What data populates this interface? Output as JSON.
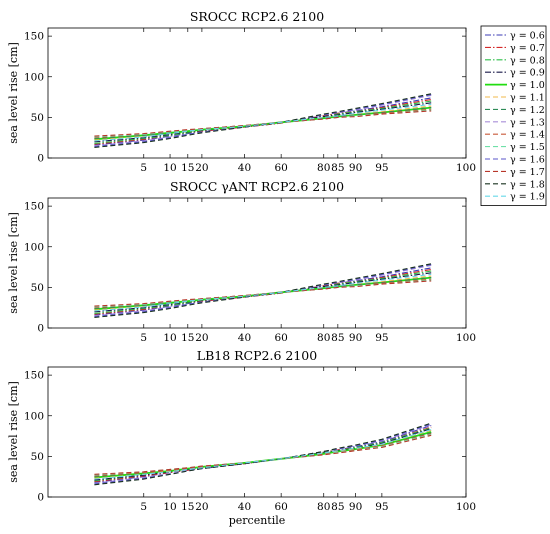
{
  "chart_data": [
    {
      "type": "line",
      "title": "SROCC RCP2.6 2100",
      "xlabel": "",
      "ylabel": "sea level rise [cm]",
      "x_ticks": [
        "5",
        "10",
        "15",
        "20",
        "40",
        "60",
        "80",
        "85",
        "90",
        "95",
        "100"
      ],
      "y_ticks": [
        "0",
        "50",
        "100",
        "150"
      ],
      "ylim": [
        0,
        160
      ],
      "x": [
        1,
        5,
        10,
        15,
        20,
        40,
        60,
        80,
        85,
        90,
        95,
        99
      ],
      "series": [
        {
          "name": "γ = 0.6",
          "values": [
            16,
            22,
            27,
            30,
            33,
            38,
            43,
            52,
            55,
            58,
            63,
            74
          ]
        },
        {
          "name": "γ = 0.7",
          "values": [
            17,
            23,
            28,
            31,
            33,
            38,
            43,
            52,
            55,
            57,
            62,
            72
          ]
        },
        {
          "name": "γ = 0.8",
          "values": [
            18,
            24,
            28,
            31,
            34,
            39,
            44,
            51,
            54,
            57,
            61,
            70
          ]
        },
        {
          "name": "γ = 0.9",
          "values": [
            20,
            25,
            29,
            32,
            34,
            39,
            44,
            51,
            53,
            56,
            60,
            68
          ]
        },
        {
          "name": "γ = 1.0",
          "values": [
            23,
            28,
            31,
            33,
            35,
            39,
            44,
            49,
            51,
            53,
            56,
            62
          ]
        },
        {
          "name": "γ = 1.1",
          "values": [
            22,
            27,
            30,
            33,
            35,
            39,
            44,
            50,
            52,
            54,
            57,
            64
          ]
        },
        {
          "name": "γ = 1.2",
          "values": [
            24,
            28,
            31,
            34,
            36,
            39,
            44,
            49,
            51,
            53,
            56,
            62
          ]
        },
        {
          "name": "γ = 1.3",
          "values": [
            15,
            21,
            26,
            29,
            32,
            38,
            44,
            53,
            56,
            59,
            65,
            77
          ]
        },
        {
          "name": "γ = 1.4",
          "values": [
            25,
            29,
            32,
            34,
            36,
            40,
            44,
            48,
            50,
            52,
            55,
            60
          ]
        },
        {
          "name": "γ = 1.5",
          "values": [
            26,
            29,
            32,
            34,
            36,
            40,
            44,
            48,
            50,
            52,
            54,
            59
          ]
        },
        {
          "name": "γ = 1.6",
          "values": [
            14,
            20,
            25,
            29,
            32,
            38,
            44,
            53,
            56,
            60,
            66,
            78
          ]
        },
        {
          "name": "γ = 1.7",
          "values": [
            27,
            30,
            33,
            35,
            36,
            40,
            44,
            48,
            50,
            51,
            54,
            58
          ]
        },
        {
          "name": "γ = 1.8",
          "values": [
            13,
            19,
            24,
            28,
            31,
            38,
            44,
            54,
            57,
            61,
            67,
            79
          ]
        },
        {
          "name": "γ = 1.9",
          "values": [
            21,
            26,
            30,
            33,
            35,
            39,
            44,
            50,
            52,
            55,
            59,
            66
          ]
        }
      ]
    },
    {
      "type": "line",
      "title": "SROCC γANT RCP2.6 2100",
      "xlabel": "",
      "ylabel": "sea level rise [cm]",
      "x_ticks": [
        "5",
        "10",
        "15",
        "20",
        "40",
        "60",
        "80",
        "85",
        "90",
        "95",
        "100"
      ],
      "y_ticks": [
        "0",
        "50",
        "100",
        "150"
      ],
      "ylim": [
        0,
        160
      ],
      "x": [
        1,
        5,
        10,
        15,
        20,
        40,
        60,
        80,
        85,
        90,
        95,
        99
      ],
      "series": [
        {
          "name": "γ = 0.6",
          "values": [
            16,
            22,
            27,
            30,
            33,
            38,
            43,
            52,
            55,
            58,
            63,
            74
          ]
        },
        {
          "name": "γ = 0.7",
          "values": [
            17,
            23,
            28,
            31,
            33,
            38,
            43,
            52,
            55,
            57,
            62,
            72
          ]
        },
        {
          "name": "γ = 0.8",
          "values": [
            18,
            24,
            28,
            31,
            34,
            39,
            44,
            51,
            54,
            57,
            61,
            70
          ]
        },
        {
          "name": "γ = 0.9",
          "values": [
            20,
            25,
            29,
            32,
            34,
            39,
            44,
            51,
            53,
            56,
            60,
            68
          ]
        },
        {
          "name": "γ = 1.0",
          "values": [
            23,
            28,
            31,
            33,
            35,
            39,
            44,
            49,
            51,
            53,
            56,
            62
          ]
        },
        {
          "name": "γ = 1.1",
          "values": [
            22,
            27,
            30,
            33,
            35,
            39,
            44,
            50,
            52,
            54,
            57,
            64
          ]
        },
        {
          "name": "γ = 1.2",
          "values": [
            24,
            28,
            31,
            34,
            36,
            39,
            44,
            49,
            51,
            53,
            56,
            62
          ]
        },
        {
          "name": "γ = 1.3",
          "values": [
            15,
            21,
            26,
            29,
            32,
            38,
            44,
            53,
            56,
            59,
            65,
            77
          ]
        },
        {
          "name": "γ = 1.4",
          "values": [
            25,
            29,
            32,
            34,
            36,
            40,
            44,
            48,
            50,
            52,
            55,
            60
          ]
        },
        {
          "name": "γ = 1.5",
          "values": [
            26,
            29,
            32,
            34,
            36,
            40,
            44,
            48,
            50,
            52,
            54,
            59
          ]
        },
        {
          "name": "γ = 1.6",
          "values": [
            14,
            20,
            25,
            29,
            32,
            38,
            44,
            53,
            56,
            60,
            66,
            78
          ]
        },
        {
          "name": "γ = 1.7",
          "values": [
            27,
            30,
            33,
            35,
            36,
            40,
            44,
            48,
            50,
            51,
            54,
            58
          ]
        },
        {
          "name": "γ = 1.8",
          "values": [
            13,
            19,
            24,
            28,
            31,
            38,
            44,
            54,
            57,
            61,
            67,
            79
          ]
        },
        {
          "name": "γ = 1.9",
          "values": [
            21,
            26,
            30,
            33,
            35,
            39,
            44,
            50,
            52,
            55,
            59,
            66
          ]
        }
      ]
    },
    {
      "type": "line",
      "title": "LB18 RCP2.6 2100",
      "xlabel": "percentile",
      "ylabel": "sea level rise [cm]",
      "x_ticks": [
        "5",
        "10",
        "15",
        "20",
        "40",
        "60",
        "80",
        "85",
        "90",
        "95",
        "100"
      ],
      "y_ticks": [
        "0",
        "50",
        "100",
        "150"
      ],
      "ylim": [
        0,
        160
      ],
      "x": [
        1,
        5,
        10,
        15,
        20,
        40,
        60,
        80,
        85,
        90,
        95,
        99
      ],
      "series": [
        {
          "name": "γ = 0.6",
          "values": [
            18,
            25,
            30,
            33,
            35,
            41,
            47,
            55,
            58,
            62,
            68,
            88
          ]
        },
        {
          "name": "γ = 0.7",
          "values": [
            19,
            26,
            30,
            33,
            36,
            41,
            47,
            55,
            58,
            61,
            67,
            86
          ]
        },
        {
          "name": "γ = 0.8",
          "values": [
            20,
            27,
            31,
            34,
            36,
            42,
            47,
            55,
            57,
            61,
            67,
            85
          ]
        },
        {
          "name": "γ = 0.9",
          "values": [
            21,
            27,
            31,
            34,
            36,
            42,
            47,
            54,
            57,
            60,
            66,
            84
          ]
        },
        {
          "name": "γ = 1.0",
          "values": [
            24,
            29,
            32,
            35,
            37,
            42,
            47,
            53,
            56,
            59,
            64,
            80
          ]
        },
        {
          "name": "γ = 1.1",
          "values": [
            23,
            28,
            32,
            35,
            37,
            42,
            47,
            54,
            56,
            59,
            65,
            82
          ]
        },
        {
          "name": "γ = 1.2",
          "values": [
            25,
            30,
            33,
            35,
            37,
            42,
            47,
            53,
            55,
            58,
            63,
            79
          ]
        },
        {
          "name": "γ = 1.3",
          "values": [
            17,
            24,
            29,
            33,
            35,
            41,
            47,
            56,
            59,
            63,
            69,
            89
          ]
        },
        {
          "name": "γ = 1.4",
          "values": [
            26,
            30,
            33,
            35,
            37,
            42,
            47,
            53,
            55,
            58,
            63,
            78
          ]
        },
        {
          "name": "γ = 1.5",
          "values": [
            27,
            31,
            34,
            36,
            38,
            42,
            47,
            52,
            55,
            57,
            62,
            77
          ]
        },
        {
          "name": "γ = 1.6",
          "values": [
            16,
            23,
            28,
            32,
            35,
            41,
            47,
            56,
            59,
            63,
            70,
            90
          ]
        },
        {
          "name": "γ = 1.7",
          "values": [
            28,
            31,
            34,
            36,
            38,
            42,
            47,
            52,
            54,
            57,
            61,
            76
          ]
        },
        {
          "name": "γ = 1.8",
          "values": [
            15,
            22,
            28,
            32,
            35,
            41,
            47,
            56,
            60,
            64,
            71,
            91
          ]
        },
        {
          "name": "γ = 1.9",
          "values": [
            22,
            28,
            31,
            34,
            36,
            42,
            47,
            54,
            57,
            60,
            65,
            83
          ]
        }
      ]
    }
  ],
  "legend": {
    "placement": "right",
    "entries": [
      {
        "label": "γ = 0.6",
        "color": "#3b3bb5",
        "dash": "dashdot"
      },
      {
        "label": "γ = 0.7",
        "color": "#d42a2a",
        "dash": "dashdot"
      },
      {
        "label": "γ = 0.8",
        "color": "#2fbf4a",
        "dash": "dashdot"
      },
      {
        "label": "γ = 0.9",
        "color": "#1a1a4a",
        "dash": "dashdot"
      },
      {
        "label": "γ = 1.0",
        "color": "#22dd11",
        "dash": "solid"
      },
      {
        "label": "γ = 1.1",
        "color": "#f2b84b",
        "dash": "dashed"
      },
      {
        "label": "γ = 1.2",
        "color": "#2e8b57",
        "dash": "dashed"
      },
      {
        "label": "γ = 1.3",
        "color": "#a88fd8",
        "dash": "dashed"
      },
      {
        "label": "γ = 1.4",
        "color": "#c85a3a",
        "dash": "dashed"
      },
      {
        "label": "γ = 1.5",
        "color": "#6fe0a8",
        "dash": "dashed"
      },
      {
        "label": "γ = 1.6",
        "color": "#5a55c8",
        "dash": "dashed"
      },
      {
        "label": "γ = 1.7",
        "color": "#b8362a",
        "dash": "dashed"
      },
      {
        "label": "γ = 1.8",
        "color": "#1a3320",
        "dash": "dashed"
      },
      {
        "label": "γ = 1.9",
        "color": "#66d8e8",
        "dash": "dashed"
      }
    ]
  }
}
